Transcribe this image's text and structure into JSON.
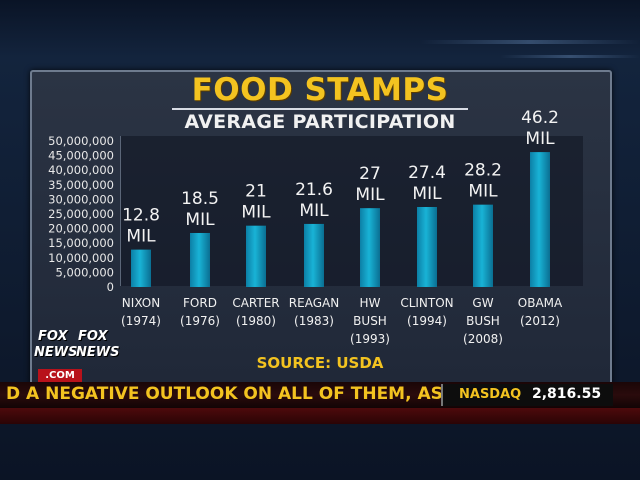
{
  "chart_data": {
    "type": "bar",
    "title": "FOOD STAMPS",
    "subtitle": "AVERAGE PARTICIPATION",
    "source": "SOURCE: USDA",
    "ylim": [
      0,
      50000000
    ],
    "yticks": [
      "0",
      "5,000,000",
      "10,000,000",
      "15,000,000",
      "20,000,000",
      "25,000,000",
      "30,000,000",
      "35,000,000",
      "40,000,000",
      "45,000,000",
      "50,000,000"
    ],
    "bar_color": "#19b3d6",
    "categories": [
      {
        "lines": [
          "NIXON",
          "(1974)"
        ]
      },
      {
        "lines": [
          "FORD",
          "(1976)"
        ]
      },
      {
        "lines": [
          "CARTER",
          "(1980)"
        ]
      },
      {
        "lines": [
          "REAGAN",
          "(1983)"
        ]
      },
      {
        "lines": [
          "HW",
          "BUSH",
          "(1993)"
        ]
      },
      {
        "lines": [
          "CLINTON",
          "(1994)"
        ]
      },
      {
        "lines": [
          "GW",
          "BUSH",
          "(2008)"
        ]
      },
      {
        "lines": [
          "OBAMA",
          "(2012)"
        ]
      }
    ],
    "values": [
      12800000,
      18500000,
      21000000,
      21600000,
      27000000,
      27400000,
      28200000,
      46200000
    ],
    "value_labels": [
      [
        "12.8",
        "MIL"
      ],
      [
        "18.5",
        "MIL"
      ],
      [
        "21",
        "MIL"
      ],
      [
        "21.6",
        "MIL"
      ],
      [
        "27",
        "MIL"
      ],
      [
        "27.4",
        "MIL"
      ],
      [
        "28.2",
        "MIL"
      ],
      [
        "46.2",
        "MIL"
      ]
    ]
  },
  "logo": {
    "line1": "FOX",
    "line2": "NEWS",
    "com": ".COM"
  },
  "ticker": {
    "headline": "D A NEGATIVE OUTLOOK ON ALL OF THEM, AS W",
    "market_name": "NASDAQ",
    "market_value": "2,816.55"
  }
}
